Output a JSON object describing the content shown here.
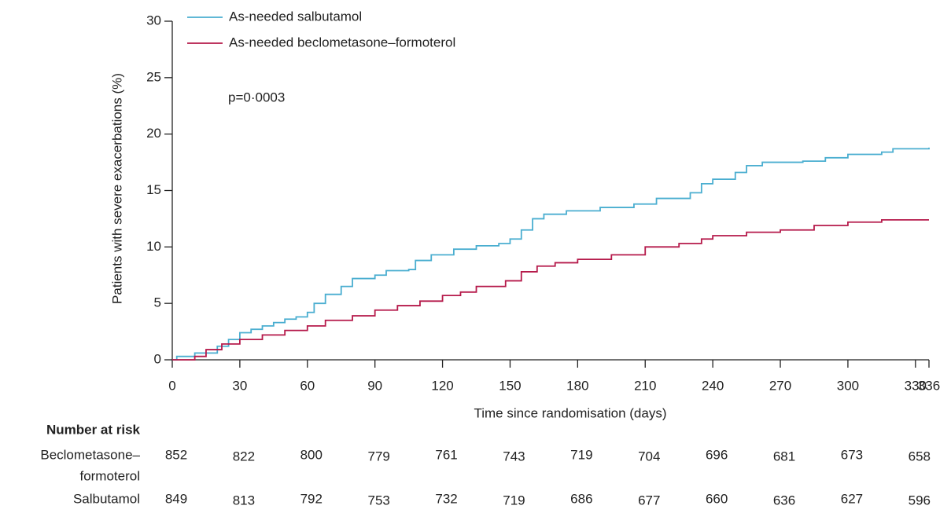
{
  "chart_data": {
    "type": "step",
    "y_label": "Patients with severe exacerbations (%)",
    "x_label": "Time since randomisation (days)",
    "annotation": "p=0·0003",
    "xlim": [
      0,
      336
    ],
    "ylim": [
      0,
      30
    ],
    "xticks": [
      0,
      30,
      60,
      90,
      120,
      150,
      180,
      210,
      240,
      270,
      300,
      330,
      336
    ],
    "yticks": [
      0,
      5,
      10,
      15,
      20,
      25,
      30
    ],
    "legend": "top-left",
    "series": [
      {
        "name": "As-needed salbutamol",
        "color": "#4aaed0",
        "x": [
          0,
          2,
          10,
          20,
          25,
          30,
          35,
          40,
          45,
          50,
          55,
          60,
          63,
          68,
          75,
          80,
          90,
          95,
          105,
          108,
          115,
          125,
          135,
          145,
          150,
          155,
          160,
          165,
          175,
          190,
          205,
          215,
          230,
          235,
          240,
          250,
          255,
          262,
          280,
          290,
          300,
          315,
          320,
          336
        ],
        "values": [
          0,
          0.3,
          0.6,
          1.2,
          1.8,
          2.4,
          2.7,
          3.0,
          3.3,
          3.6,
          3.8,
          4.2,
          5.0,
          5.8,
          6.5,
          7.2,
          7.5,
          7.9,
          8.0,
          8.8,
          9.3,
          9.8,
          10.1,
          10.3,
          10.7,
          11.5,
          12.5,
          12.9,
          13.2,
          13.5,
          13.8,
          14.3,
          14.8,
          15.6,
          16.0,
          16.6,
          17.2,
          17.5,
          17.6,
          17.9,
          18.2,
          18.4,
          18.7,
          18.8
        ]
      },
      {
        "name": "As-needed beclometasone–formoterol",
        "color": "#b5194a",
        "x": [
          0,
          10,
          15,
          22,
          30,
          40,
          50,
          60,
          68,
          80,
          90,
          100,
          110,
          120,
          128,
          135,
          148,
          155,
          162,
          170,
          180,
          195,
          210,
          225,
          235,
          240,
          255,
          270,
          285,
          300,
          315,
          336
        ],
        "values": [
          0,
          0.3,
          0.9,
          1.4,
          1.8,
          2.2,
          2.6,
          3.0,
          3.5,
          3.9,
          4.4,
          4.8,
          5.2,
          5.7,
          6.0,
          6.5,
          7.0,
          7.8,
          8.3,
          8.6,
          8.9,
          9.3,
          10.0,
          10.3,
          10.7,
          11.0,
          11.3,
          11.5,
          11.9,
          12.2,
          12.4,
          12.4
        ]
      }
    ],
    "risk_table": {
      "title": "Number at risk",
      "rows": [
        {
          "label_lines": [
            "Beclometasone–",
            "formoterol"
          ],
          "values": [
            852,
            822,
            800,
            779,
            761,
            743,
            719,
            704,
            696,
            681,
            673,
            658
          ]
        },
        {
          "label_lines": [
            "Salbutamol"
          ],
          "values": [
            849,
            813,
            792,
            753,
            732,
            719,
            686,
            677,
            660,
            636,
            627,
            596
          ]
        }
      ]
    }
  }
}
